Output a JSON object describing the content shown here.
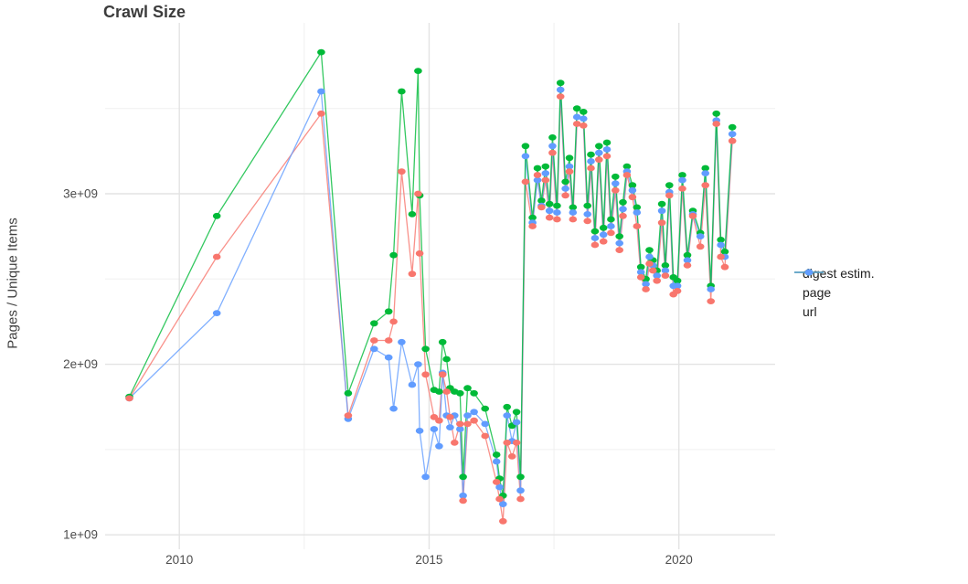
{
  "legend": [
    {
      "label": "digest estim.",
      "color": "#F8766D"
    },
    {
      "label": "page",
      "color": "#00BA38"
    },
    {
      "label": "url",
      "color": "#619CFF"
    }
  ],
  "chart_data": {
    "type": "line",
    "title": "Crawl Size",
    "xlabel": "",
    "ylabel": "Pages / Unique Items",
    "legend_position": "right",
    "grid": {
      "major_x": [
        2010,
        2015,
        2020
      ],
      "minor_x": [
        2012.5,
        2017.5
      ],
      "major_y": [
        1,
        2,
        3
      ],
      "minor_y": [
        1.5,
        2.5,
        3.5
      ]
    },
    "x_ticks": [
      {
        "label": "2010",
        "value": 2010
      },
      {
        "label": "2015",
        "value": 2015
      },
      {
        "label": "2020",
        "value": 2020
      }
    ],
    "y_ticks": [
      {
        "label": "1e+09",
        "value": 1
      },
      {
        "label": "2e+09",
        "value": 2
      },
      {
        "label": "3e+09",
        "value": 3
      }
    ],
    "xlim": [
      2008.5,
      2021.9
    ],
    "ylim_billions": [
      0.92,
      4.0
    ],
    "x_years": [
      2009.0,
      2010.75,
      2012.84,
      2013.38,
      2013.9,
      2014.19,
      2014.29,
      2014.45,
      2014.66,
      2014.78,
      2014.81,
      2014.93,
      2015.1,
      2015.2,
      2015.27,
      2015.35,
      2015.42,
      2015.51,
      2015.62,
      2015.68,
      2015.77,
      2015.9,
      2016.12,
      2016.35,
      2016.41,
      2016.48,
      2016.56,
      2016.66,
      2016.75,
      2016.83,
      2016.93,
      2017.07,
      2017.17,
      2017.25,
      2017.33,
      2017.41,
      2017.47,
      2017.56,
      2017.63,
      2017.73,
      2017.81,
      2017.88,
      2017.96,
      2018.09,
      2018.17,
      2018.24,
      2018.32,
      2018.4,
      2018.49,
      2018.56,
      2018.64,
      2018.73,
      2018.81,
      2018.88,
      2018.96,
      2019.07,
      2019.16,
      2019.24,
      2019.34,
      2019.41,
      2019.48,
      2019.56,
      2019.66,
      2019.73,
      2019.81,
      2019.89,
      2019.97,
      2020.07,
      2020.17,
      2020.28,
      2020.43,
      2020.53,
      2020.64,
      2020.75,
      2020.84,
      2020.92,
      2021.07
    ],
    "series": [
      {
        "name": "digest estim.",
        "color": "#F8766D",
        "values_billions": [
          1.8,
          2.63,
          3.47,
          1.7,
          2.14,
          2.14,
          2.25,
          3.13,
          2.53,
          3.0,
          2.65,
          1.94,
          1.69,
          1.67,
          1.94,
          1.84,
          1.69,
          1.54,
          1.65,
          1.2,
          1.65,
          1.67,
          1.58,
          1.31,
          1.21,
          1.08,
          1.54,
          1.46,
          1.54,
          1.21,
          3.07,
          2.81,
          3.11,
          2.92,
          3.08,
          2.86,
          3.24,
          2.85,
          3.57,
          2.99,
          3.13,
          2.85,
          3.41,
          3.4,
          2.84,
          3.15,
          2.7,
          3.2,
          2.72,
          3.22,
          2.77,
          3.02,
          2.67,
          2.87,
          3.11,
          2.98,
          2.81,
          2.51,
          2.44,
          2.59,
          2.55,
          2.49,
          2.83,
          2.52,
          2.99,
          2.41,
          2.43,
          3.03,
          2.58,
          2.87,
          2.69,
          3.05,
          2.37,
          3.41,
          2.63,
          2.57,
          3.31
        ]
      },
      {
        "name": "page",
        "color": "#00BA38",
        "values_billions": [
          1.81,
          2.87,
          3.83,
          1.83,
          2.24,
          2.31,
          2.64,
          3.6,
          2.88,
          3.72,
          2.99,
          2.09,
          1.85,
          1.84,
          2.13,
          2.03,
          1.86,
          1.84,
          1.83,
          1.34,
          1.86,
          1.83,
          1.74,
          1.47,
          1.33,
          1.23,
          1.75,
          1.64,
          1.72,
          1.34,
          3.28,
          2.86,
          3.15,
          2.96,
          3.16,
          2.94,
          3.33,
          2.93,
          3.65,
          3.07,
          3.21,
          2.92,
          3.5,
          3.48,
          2.93,
          3.23,
          2.78,
          3.28,
          2.8,
          3.3,
          2.85,
          3.1,
          2.75,
          2.95,
          3.16,
          3.05,
          2.92,
          2.57,
          2.5,
          2.67,
          2.61,
          2.55,
          2.94,
          2.58,
          3.05,
          2.51,
          2.49,
          3.11,
          2.64,
          2.9,
          2.77,
          3.15,
          2.46,
          3.47,
          2.73,
          2.66,
          3.39
        ]
      },
      {
        "name": "url",
        "color": "#619CFF",
        "values_billions": [
          1.8,
          2.3,
          3.6,
          1.68,
          2.09,
          2.04,
          1.74,
          2.13,
          1.88,
          2.0,
          1.61,
          1.34,
          1.62,
          1.52,
          1.95,
          1.7,
          1.63,
          1.7,
          1.62,
          1.23,
          1.7,
          1.72,
          1.65,
          1.43,
          1.28,
          1.18,
          1.7,
          1.55,
          1.66,
          1.26,
          3.22,
          2.83,
          3.08,
          2.93,
          3.12,
          2.9,
          3.28,
          2.89,
          3.61,
          3.03,
          3.16,
          2.89,
          3.45,
          3.44,
          2.88,
          3.19,
          2.74,
          3.24,
          2.76,
          3.26,
          2.81,
          3.06,
          2.71,
          2.91,
          3.13,
          3.02,
          2.89,
          2.54,
          2.47,
          2.63,
          2.58,
          2.52,
          2.9,
          2.55,
          3.01,
          2.46,
          2.46,
          3.08,
          2.61,
          2.88,
          2.75,
          3.12,
          2.44,
          3.43,
          2.7,
          2.63,
          3.35
        ]
      }
    ]
  }
}
